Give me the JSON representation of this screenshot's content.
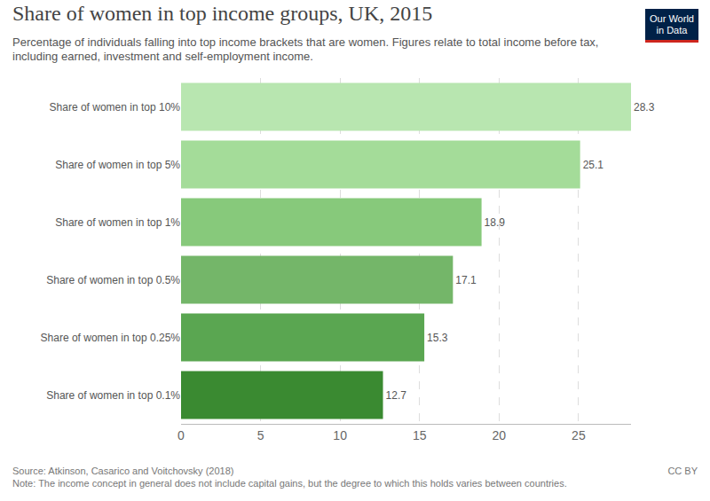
{
  "chart_data": {
    "type": "bar",
    "title": "Share of women in top income groups, UK, 2015",
    "subtitle": "Percentage of individuals falling into top income brackets that are women. Figures relate to total income before tax, including earned, investment and self-employment income.",
    "categories": [
      "Share of women in top 10%",
      "Share of women in top 5%",
      "Share of women in top 1%",
      "Share of women in top 0.5%",
      "Share of women in top 0.25%",
      "Share of women in top 0.1%"
    ],
    "values": [
      28.3,
      25.1,
      18.9,
      17.1,
      15.3,
      12.7
    ],
    "colors": [
      "#b8e6b0",
      "#a4dc99",
      "#87c97b",
      "#74b669",
      "#5aa651",
      "#3a8a31"
    ],
    "orientation": "horizontal",
    "xlim": [
      0,
      28.3
    ],
    "xticks": [
      0,
      5,
      10,
      15,
      20,
      25
    ],
    "grid": true,
    "data_labels": true,
    "annotations": [
      "Source: Atkinson, Casarico and Voitchovsky (2018)",
      "Note: The income concept in general does not include capital gains, but the degree to which this holds varies between countries.",
      "CC BY"
    ],
    "logo": [
      "Our World",
      "in Data"
    ]
  }
}
